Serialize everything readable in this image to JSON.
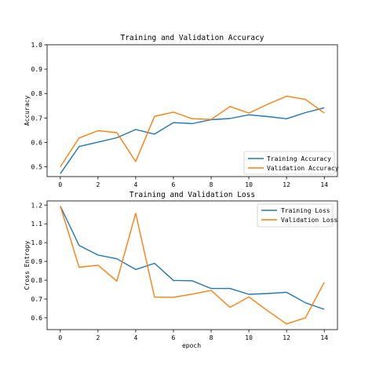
{
  "chart_data": [
    {
      "type": "line",
      "title": "Training and Validation Accuracy",
      "xlabel": "",
      "ylabel": "Accuracy",
      "xlim": [
        -0.7,
        14.7
      ],
      "ylim": [
        0.46,
        1.0
      ],
      "xticks": [
        0,
        2,
        4,
        6,
        8,
        10,
        12,
        14
      ],
      "yticks": [
        0.5,
        0.6,
        0.7,
        0.8,
        0.9,
        1.0
      ],
      "ytick_labels": [
        "0.5",
        "0.6",
        "0.7",
        "0.8",
        "0.9",
        "1.0"
      ],
      "legend_position": "lower-right",
      "x": [
        0,
        1,
        2,
        3,
        4,
        5,
        6,
        7,
        8,
        9,
        10,
        11,
        12,
        13,
        14
      ],
      "series": [
        {
          "name": "Training Accuracy",
          "color": "#1f77b4",
          "values": [
            0.472,
            0.583,
            0.601,
            0.619,
            0.653,
            0.634,
            0.681,
            0.677,
            0.693,
            0.698,
            0.713,
            0.706,
            0.697,
            0.722,
            0.742
          ]
        },
        {
          "name": "Validation Accuracy",
          "color": "#ff7f0e",
          "values": [
            0.5,
            0.618,
            0.648,
            0.64,
            0.522,
            0.707,
            0.724,
            0.697,
            0.694,
            0.747,
            0.72,
            0.756,
            0.789,
            0.776,
            0.72
          ]
        }
      ]
    },
    {
      "type": "line",
      "title": "Training and Validation Loss",
      "xlabel": "epoch",
      "ylabel": "Cross Entropy",
      "xlim": [
        -0.7,
        14.7
      ],
      "ylim": [
        0.537,
        1.222
      ],
      "xticks": [
        0,
        2,
        4,
        6,
        8,
        10,
        12,
        14
      ],
      "yticks": [
        0.6,
        0.7,
        0.8,
        0.9,
        1.0,
        1.1,
        1.2
      ],
      "ytick_labels": [
        "0.6",
        "0.7",
        "0.8",
        "0.9",
        "1.0",
        "1.1",
        "1.2"
      ],
      "legend_position": "upper-right",
      "x": [
        0,
        1,
        2,
        3,
        4,
        5,
        6,
        7,
        8,
        9,
        10,
        11,
        12,
        13,
        14
      ],
      "series": [
        {
          "name": "Training Loss",
          "color": "#1f77b4",
          "values": [
            1.195,
            0.985,
            0.934,
            0.914,
            0.857,
            0.89,
            0.799,
            0.797,
            0.756,
            0.756,
            0.725,
            0.729,
            0.736,
            0.68,
            0.645
          ]
        },
        {
          "name": "Validation Loss",
          "color": "#ff7f0e",
          "values": [
            1.195,
            0.869,
            0.88,
            0.795,
            1.156,
            0.71,
            0.709,
            0.726,
            0.746,
            0.655,
            0.711,
            0.637,
            0.567,
            0.6,
            0.789
          ]
        }
      ]
    }
  ]
}
